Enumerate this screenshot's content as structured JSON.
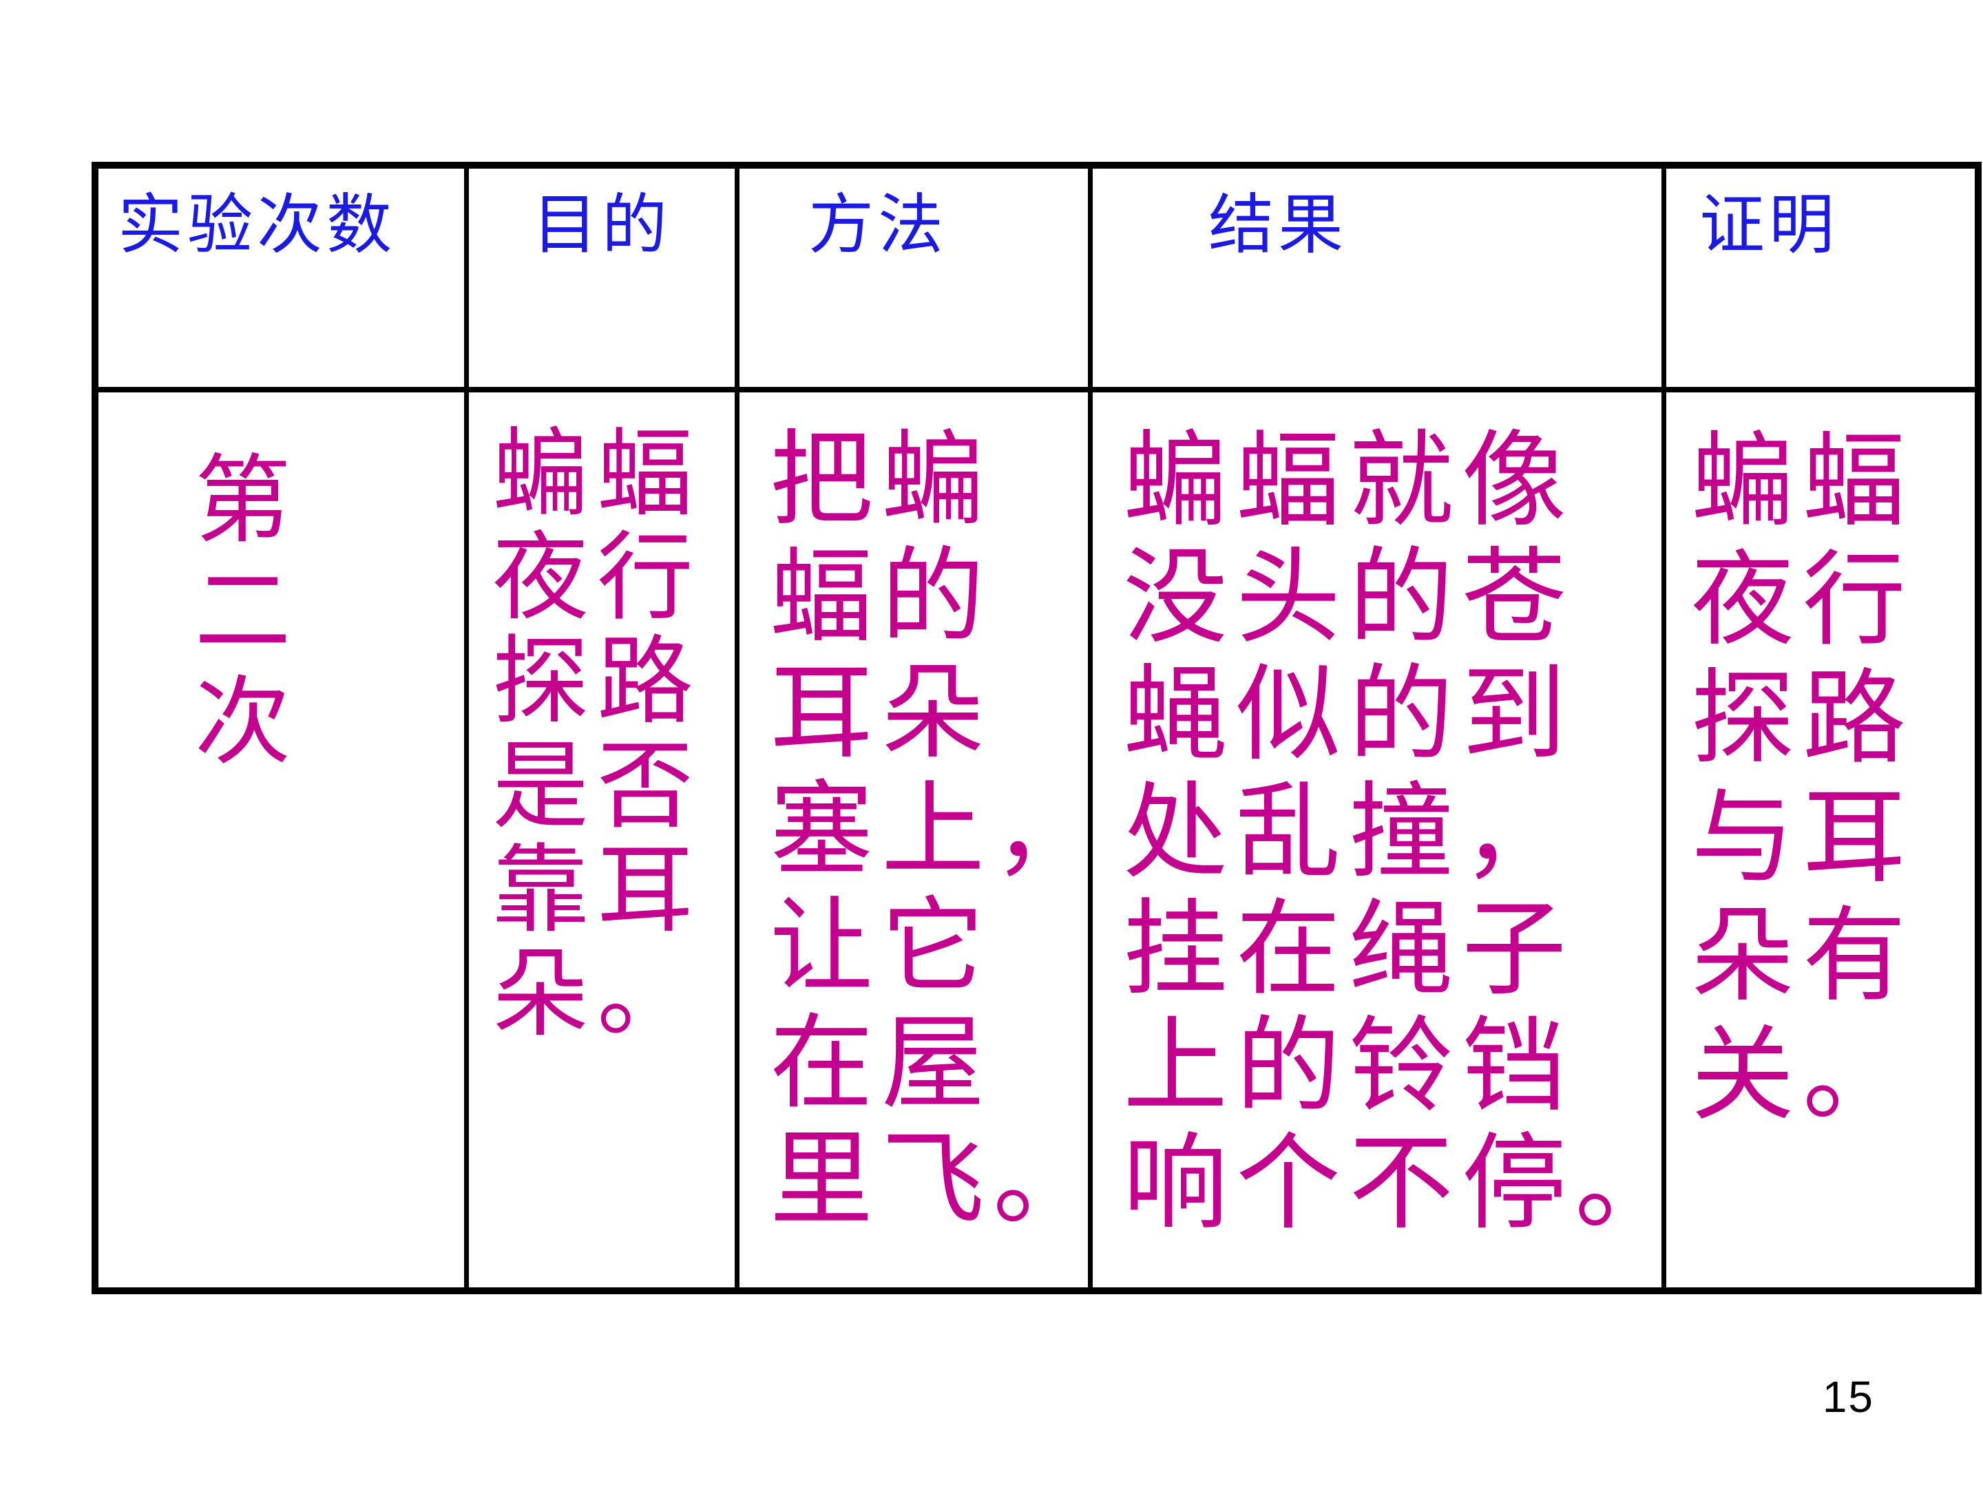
{
  "slide": {
    "background_color": "#ffffff",
    "page_number": "15"
  },
  "table": {
    "border_color": "#000000",
    "header_text_color": "#1a1ae0",
    "body_text_color": "#c4008f",
    "headers": [
      "实验次数",
      "目的",
      "方法",
      "结果",
      "证明"
    ],
    "row": {
      "experiment": [
        "第",
        "二",
        "次"
      ],
      "purpose": [
        "蝙蝠",
        "夜行",
        "探路",
        "是否",
        "靠耳",
        "朵。"
      ],
      "method": [
        "把蝙",
        "蝠的",
        "耳朵",
        "塞上，",
        "让它",
        "在屋",
        "里飞。"
      ],
      "result": [
        "蝙蝠就像",
        "没头的苍",
        "蝇似的到",
        "处乱撞，",
        "挂在绳子",
        "上的铃铛",
        "响个不停。"
      ],
      "proof": [
        "蝙蝠",
        "夜行",
        "探路",
        "与耳",
        "朵有",
        "关。"
      ]
    }
  }
}
